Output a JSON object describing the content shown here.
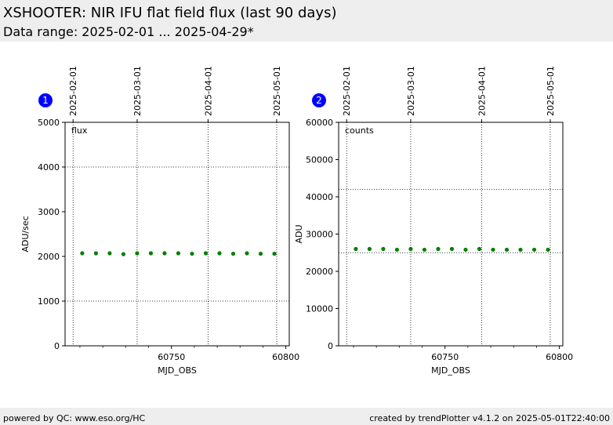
{
  "header": {
    "title": "XSHOOTER: NIR IFU flat field flux (last 90 days)",
    "subtitle": "Data range: 2025-02-01 ... 2025-04-29*"
  },
  "footer": {
    "left": "powered by QC: www.eso.org/HC",
    "right": "created by trendPlotter v4.1.2 on 2025-05-01T22:40:00"
  },
  "colors": {
    "points": "#008000",
    "badge": "#0000ff",
    "header_bg": "#eeeeee"
  },
  "chart_data": [
    {
      "type": "scatter",
      "badge": "1",
      "label": "flux",
      "xlabel": "MJD_OBS",
      "ylabel": "ADU/sec",
      "xlim": [
        60703.5,
        60801.5
      ],
      "ylim": [
        0,
        5000
      ],
      "xticks": [
        60750,
        60800
      ],
      "yticks": [
        0,
        1000,
        2000,
        3000,
        4000,
        5000
      ],
      "top_axis": {
        "dates": [
          "2025-02-01",
          "2025-03-01",
          "2025-04-01",
          "2025-05-01"
        ],
        "mjd": [
          60707,
          60735,
          60766,
          60796
        ]
      },
      "hlines": [
        1000,
        4000
      ],
      "x": [
        60711,
        60717,
        60723,
        60729,
        60735,
        60741,
        60747,
        60753,
        60759,
        60765,
        60771,
        60777,
        60783,
        60789,
        60795
      ],
      "y": [
        2070,
        2070,
        2070,
        2050,
        2070,
        2070,
        2070,
        2070,
        2060,
        2070,
        2070,
        2060,
        2070,
        2060,
        2060
      ]
    },
    {
      "type": "scatter",
      "badge": "2",
      "label": "counts",
      "xlabel": "MJD_OBS",
      "ylabel": "ADU",
      "xlim": [
        60703.5,
        60801.5
      ],
      "ylim": [
        0,
        60000
      ],
      "xticks": [
        60750,
        60800
      ],
      "yticks": [
        0,
        10000,
        20000,
        30000,
        40000,
        50000,
        60000
      ],
      "top_axis": {
        "dates": [
          "2025-02-01",
          "2025-03-01",
          "2025-04-01",
          "2025-05-01"
        ],
        "mjd": [
          60707,
          60735,
          60766,
          60796
        ]
      },
      "hlines": [
        25000,
        42000
      ],
      "x": [
        60711,
        60717,
        60723,
        60729,
        60735,
        60741,
        60747,
        60753,
        60759,
        60765,
        60771,
        60777,
        60783,
        60789,
        60795
      ],
      "y": [
        26000,
        26000,
        26000,
        25800,
        26000,
        25800,
        26000,
        26000,
        25800,
        26000,
        25800,
        25800,
        25800,
        25800,
        25800
      ]
    }
  ]
}
